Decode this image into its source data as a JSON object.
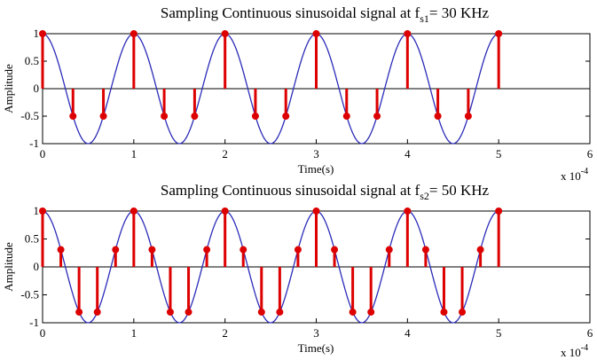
{
  "chart_data": [
    {
      "type": "line",
      "title_main": "Sampling Continuous sinusoidal signal at f",
      "title_sub": "s1",
      "title_rest": "= 30 KHz",
      "xlabel": "Time(s)",
      "ylabel": "Amplitude",
      "x_multiplier": "x 10",
      "x_multiplier_exp": "-4",
      "xlim": [
        0,
        6
      ],
      "ylim": [
        -1,
        1
      ],
      "xticks": [
        0,
        1,
        2,
        3,
        4,
        5,
        6
      ],
      "yticks": [
        -1,
        -0.5,
        0,
        0.5,
        1
      ],
      "signal_frequency_hz": 10000,
      "series": [
        {
          "kind": "continuous",
          "x_start": 0,
          "x_end": 5,
          "description": "cosine, period 1e-4 s",
          "color": "#2b2bb8"
        },
        {
          "kind": "stem",
          "color": "#dd0000",
          "x": [
            0,
            0.3333,
            0.6667,
            1,
            1.3333,
            1.6667,
            2,
            2.3333,
            2.6667,
            3,
            3.3333,
            3.6667,
            4,
            4.3333,
            4.6667,
            5
          ],
          "y": [
            1,
            -0.5,
            -0.5,
            1,
            -0.5,
            -0.5,
            1,
            -0.5,
            -0.5,
            1,
            -0.5,
            -0.5,
            1,
            -0.5,
            -0.5,
            1
          ]
        }
      ]
    },
    {
      "type": "line",
      "title_main": "Sampling Continuous sinusoidal signal at f",
      "title_sub": "s2",
      "title_rest": "= 50 KHz",
      "xlabel": "Time(s)",
      "ylabel": "Amplitude",
      "x_multiplier": "x 10",
      "x_multiplier_exp": "-4",
      "xlim": [
        0,
        6
      ],
      "ylim": [
        -1,
        1
      ],
      "xticks": [
        0,
        1,
        2,
        3,
        4,
        5,
        6
      ],
      "yticks": [
        -1,
        -0.5,
        0,
        0.5,
        1
      ],
      "signal_frequency_hz": 10000,
      "series": [
        {
          "kind": "continuous",
          "x_start": 0,
          "x_end": 5,
          "description": "cosine, period 1e-4 s",
          "color": "#2b2bb8"
        },
        {
          "kind": "stem",
          "color": "#dd0000",
          "x": [
            0,
            0.2,
            0.4,
            0.6,
            0.8,
            1,
            1.2,
            1.4,
            1.6,
            1.8,
            2,
            2.2,
            2.4,
            2.6,
            2.8,
            3,
            3.2,
            3.4,
            3.6,
            3.8,
            4,
            4.2,
            4.4,
            4.6,
            4.8,
            5
          ],
          "y": [
            1,
            0.309,
            -0.809,
            -0.809,
            0.309,
            1,
            0.309,
            -0.809,
            -0.809,
            0.309,
            1,
            0.309,
            -0.809,
            -0.809,
            0.309,
            1,
            0.309,
            -0.809,
            -0.809,
            0.309,
            1,
            0.309,
            -0.809,
            -0.809,
            0.309,
            1
          ]
        }
      ]
    }
  ]
}
